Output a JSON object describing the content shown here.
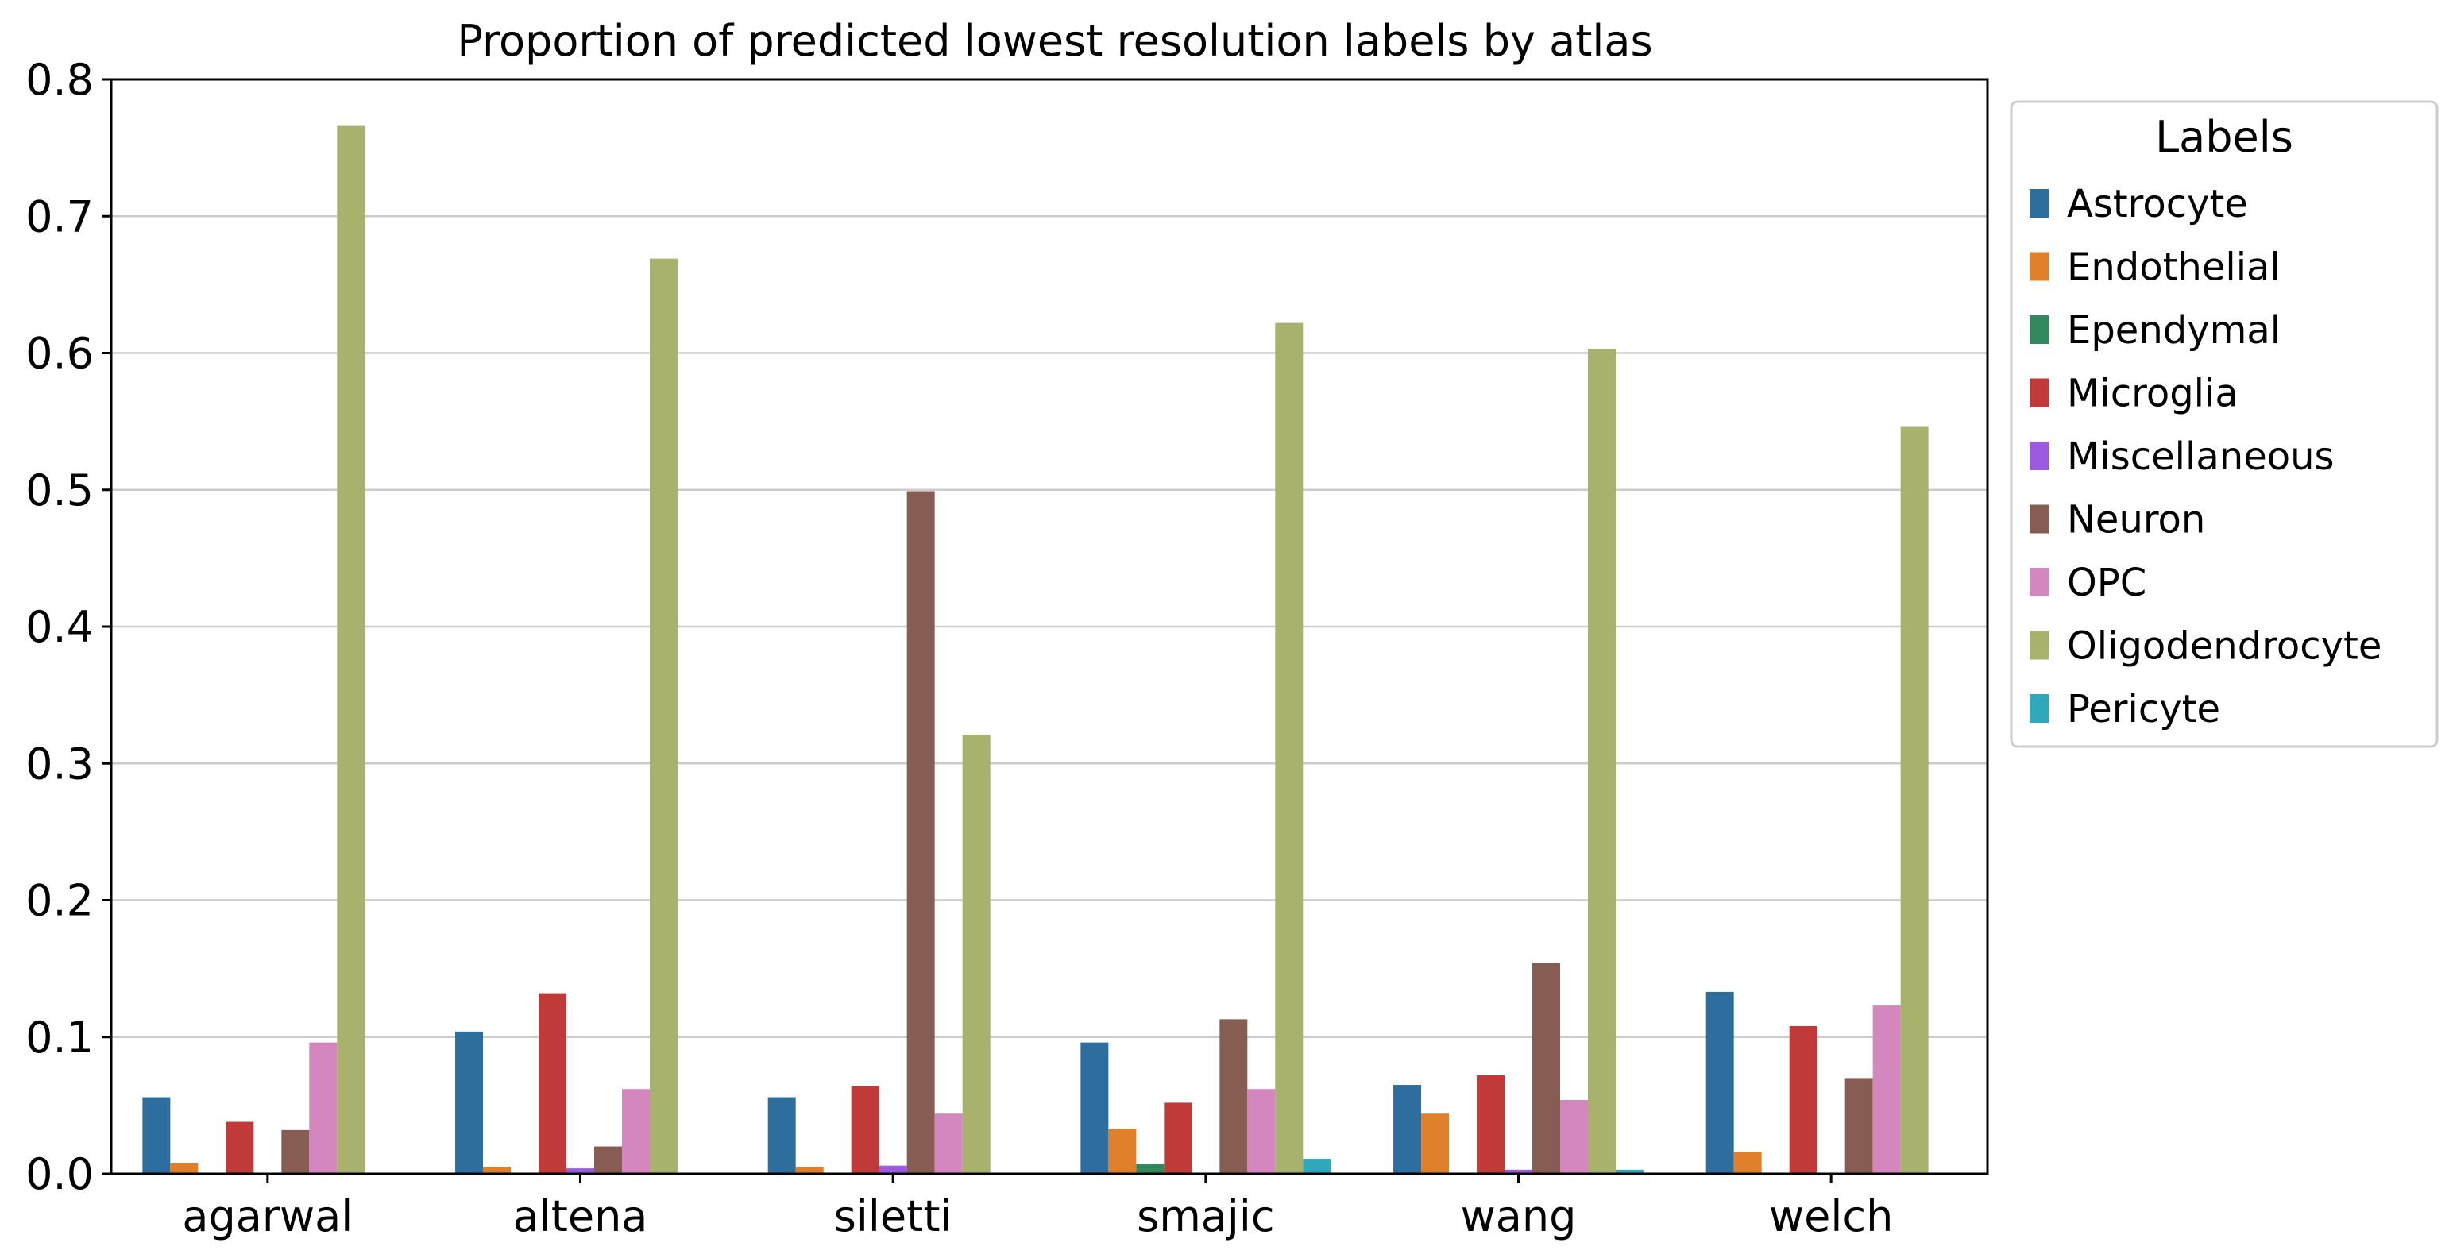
{
  "chart_data": {
    "type": "bar",
    "title": "Proportion of predicted lowest resolution labels by atlas",
    "xlabel": "",
    "ylabel": "",
    "ylim": [
      0,
      0.8
    ],
    "yticks": [
      "0.0",
      "0.1",
      "0.2",
      "0.3",
      "0.4",
      "0.5",
      "0.6",
      "0.7",
      "0.8"
    ],
    "grid": "horizontal",
    "legend_title": "Labels",
    "legend_position": "outside-right",
    "categories": [
      "agarwal",
      "altena",
      "siletti",
      "smajic",
      "wang",
      "welch"
    ],
    "series": [
      {
        "name": "Astrocyte",
        "color": "#2e6e9e",
        "values": [
          0.056,
          0.104,
          0.056,
          0.096,
          0.065,
          0.133
        ]
      },
      {
        "name": "Endothelial",
        "color": "#e1802a",
        "values": [
          0.008,
          0.005,
          0.005,
          0.033,
          0.044,
          0.016
        ]
      },
      {
        "name": "Ependymal",
        "color": "#33895e",
        "values": [
          0,
          0,
          0,
          0.007,
          0,
          0
        ]
      },
      {
        "name": "Microglia",
        "color": "#c03a3a",
        "values": [
          0.038,
          0.132,
          0.064,
          0.052,
          0.072,
          0.108
        ]
      },
      {
        "name": "Miscellaneous",
        "color": "#9c5ae0",
        "values": [
          0,
          0.004,
          0.006,
          0,
          0.003,
          0
        ]
      },
      {
        "name": "Neuron",
        "color": "#875c52",
        "values": [
          0.032,
          0.02,
          0.499,
          0.113,
          0.154,
          0.07
        ]
      },
      {
        "name": "OPC",
        "color": "#d486bf",
        "values": [
          0.096,
          0.062,
          0.044,
          0.062,
          0.054,
          0.123
        ]
      },
      {
        "name": "Oligodendrocyte",
        "color": "#a9b26c",
        "values": [
          0.766,
          0.669,
          0.321,
          0.622,
          0.603,
          0.546
        ]
      },
      {
        "name": "Pericyte",
        "color": "#31a7bb",
        "values": [
          0,
          0,
          0,
          0.011,
          0.003,
          0
        ]
      }
    ]
  }
}
